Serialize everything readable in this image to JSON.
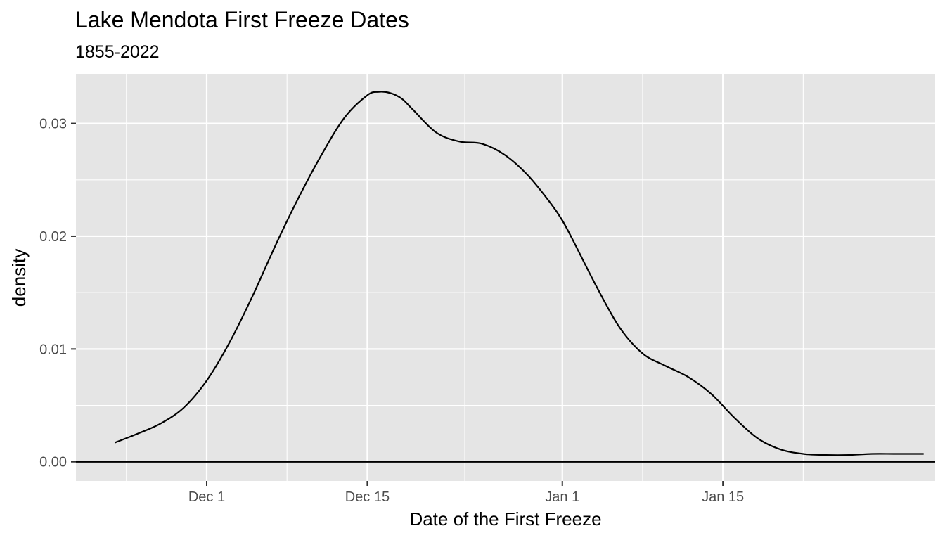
{
  "chart_data": {
    "type": "area",
    "title": "Lake Mendota First Freeze Dates",
    "subtitle": "1855-2022",
    "xlabel": "Date of the First Freeze",
    "ylabel": "density",
    "x_ticks": [
      {
        "label": "Dec 1",
        "value": 0
      },
      {
        "label": "Dec 15",
        "value": 14
      },
      {
        "label": "Jan 1",
        "value": 31
      },
      {
        "label": "Jan 15",
        "value": 45
      }
    ],
    "y_ticks": [
      {
        "label": "0.00",
        "value": 0.0
      },
      {
        "label": "0.01",
        "value": 0.01
      },
      {
        "label": "0.02",
        "value": 0.02
      },
      {
        "label": "0.03",
        "value": 0.03
      }
    ],
    "xlim": [
      -11.4,
      63.5
    ],
    "ylim": [
      -0.0017,
      0.0344
    ],
    "grid": true,
    "baseline": 0,
    "series": [
      {
        "color": "#000000",
        "x": [
          -8,
          -6,
          -4,
          -2,
          0,
          2,
          4,
          6,
          8,
          10,
          12,
          14,
          15,
          16,
          17,
          18,
          20,
          22,
          24,
          26,
          28,
          30,
          31,
          32,
          34,
          36,
          38,
          40,
          42,
          44,
          46,
          48,
          50,
          52,
          54,
          56,
          58,
          60,
          62.5
        ],
        "y": [
          0.0017,
          0.0025,
          0.0034,
          0.0048,
          0.0072,
          0.0106,
          0.0147,
          0.0192,
          0.0234,
          0.0272,
          0.0305,
          0.0325,
          0.0328,
          0.0327,
          0.0322,
          0.0312,
          0.0292,
          0.0284,
          0.0282,
          0.0272,
          0.0254,
          0.0229,
          0.0214,
          0.0195,
          0.0155,
          0.0119,
          0.0096,
          0.0085,
          0.0075,
          0.006,
          0.0039,
          0.0021,
          0.0011,
          0.0007,
          0.0006,
          0.0006,
          0.0007,
          0.0007,
          0.0007
        ]
      }
    ]
  }
}
